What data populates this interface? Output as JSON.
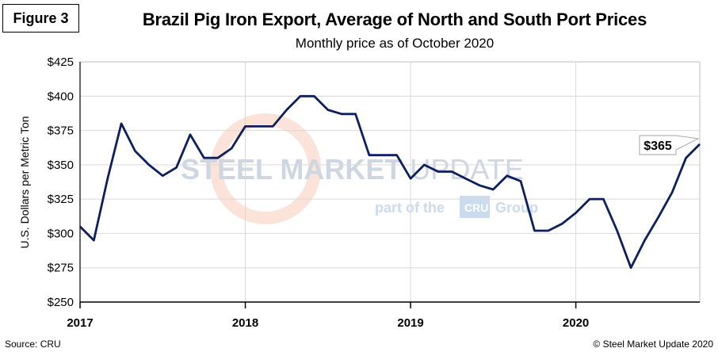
{
  "figure_label": "Figure 3",
  "chart_data": {
    "type": "line",
    "title": "Brazil Pig Iron Export, Average of North and South Port Prices",
    "subtitle": "Monthly price as of October 2020",
    "ylabel": "U.S. Dollars per Metric Ton",
    "xlabel": "",
    "ylim": [
      250,
      425
    ],
    "yticks": [
      250,
      275,
      300,
      325,
      350,
      375,
      400,
      425
    ],
    "ytick_labels": [
      "$250",
      "$275",
      "$300",
      "$325",
      "$350",
      "$375",
      "$400",
      "$425"
    ],
    "xticks": [
      "2017",
      "2018",
      "2019",
      "2020"
    ],
    "grid": "on",
    "line_color": "#0d1f5c",
    "series": [
      {
        "x": [
          "2017-01",
          "2017-02",
          "2017-03",
          "2017-04",
          "2017-05",
          "2017-06",
          "2017-07",
          "2017-08",
          "2017-09",
          "2017-10",
          "2017-11",
          "2017-12",
          "2018-01",
          "2018-02",
          "2018-03",
          "2018-04",
          "2018-05",
          "2018-06",
          "2018-07",
          "2018-08",
          "2018-09",
          "2018-10",
          "2018-11",
          "2018-12",
          "2019-01",
          "2019-02",
          "2019-03",
          "2019-04",
          "2019-05",
          "2019-06",
          "2019-07",
          "2019-08",
          "2019-09",
          "2019-10",
          "2019-11",
          "2019-12",
          "2020-01",
          "2020-02",
          "2020-03",
          "2020-04",
          "2020-05",
          "2020-06",
          "2020-07",
          "2020-08",
          "2020-09",
          "2020-10"
        ],
        "values": [
          305,
          295,
          340,
          380,
          360,
          350,
          342,
          348,
          372,
          355,
          355,
          362,
          378,
          378,
          378,
          390,
          400,
          400,
          390,
          387,
          387,
          357,
          357,
          357,
          340,
          350,
          345,
          345,
          340,
          335,
          332,
          342,
          338,
          302,
          302,
          307,
          315,
          325,
          325,
          302,
          275,
          295,
          312,
          330,
          355,
          365
        ]
      }
    ],
    "annotations": [
      {
        "text": "$365",
        "x": "2020-10",
        "y": 365
      }
    ]
  },
  "watermark": {
    "line1_a": "STEEL",
    "line1_b": " MARKET ",
    "line1_c": "UPDATE",
    "line2_a": "part of the",
    "line2_b": "CRU",
    "line2_c": "Group"
  },
  "footer": {
    "source": "Source: CRU",
    "copyright": "© Steel Market Update 2020"
  }
}
